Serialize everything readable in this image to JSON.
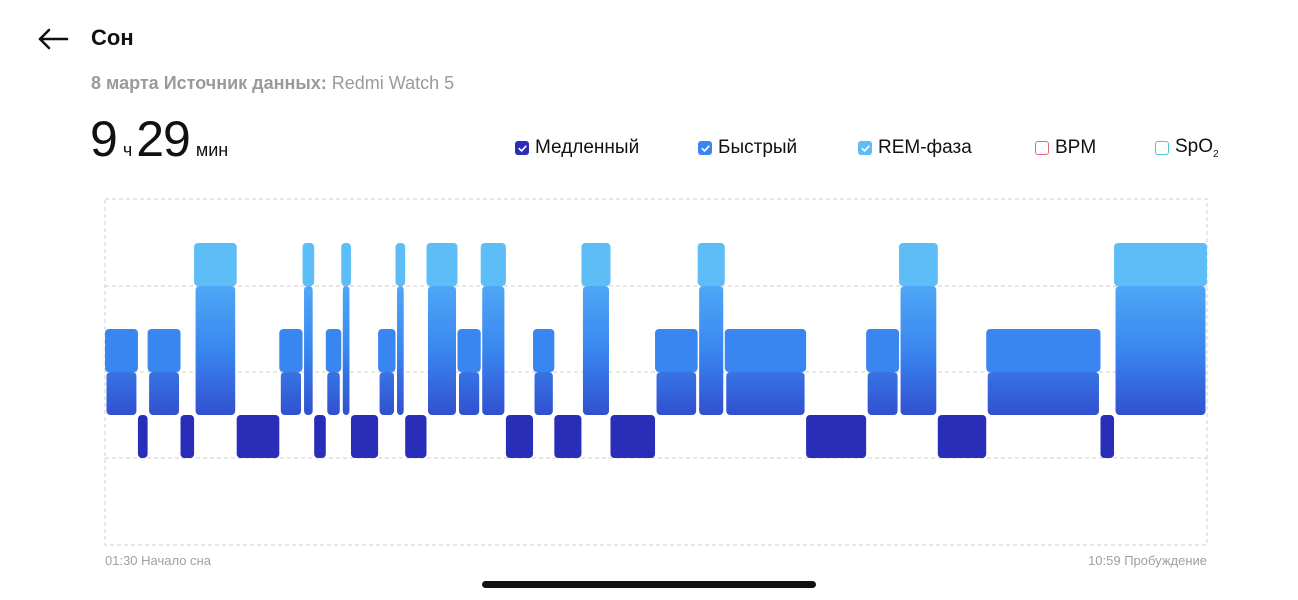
{
  "header": {
    "title": "Сон",
    "date": "8 марта",
    "source_label": "Источник данных:",
    "source_value": "Redmi Watch 5"
  },
  "duration": {
    "hours": "9",
    "hours_unit": "ч",
    "minutes": "29",
    "minutes_unit": "мин"
  },
  "legend": [
    {
      "label": "Медленный",
      "checked": true,
      "color": "#2A2DB8"
    },
    {
      "label": "Быстрый",
      "checked": true,
      "color": "#3A86F0"
    },
    {
      "label": "REM-фаза",
      "checked": true,
      "color": "#5CBDF7"
    },
    {
      "label": "BPM",
      "checked": false,
      "color": "#E8646E"
    },
    {
      "label": "SpO",
      "label_sub": "2",
      "checked": false,
      "color": "#4CC9CC"
    }
  ],
  "chart_data": {
    "type": "area",
    "x_start": "01:30",
    "x_end": "10:59",
    "x_start_label": "01:30 Начало сна",
    "x_end_label": "10:59 Пробуждение",
    "levels": [
      "REM-фаза",
      "Быстрый",
      "Медленный"
    ],
    "colors": {
      "REM-фаза": "#5CBDF7",
      "Быстрый": "#3A86F0",
      "Медленный": "#2A2DB8"
    },
    "segments": [
      {
        "start": "01:30",
        "end": "01:47",
        "stage": "Быстрый"
      },
      {
        "start": "01:47",
        "end": "01:52",
        "stage": "Медленный"
      },
      {
        "start": "01:52",
        "end": "02:09",
        "stage": "Быстрый"
      },
      {
        "start": "02:09",
        "end": "02:16",
        "stage": "Медленный"
      },
      {
        "start": "02:16",
        "end": "02:38",
        "stage": "REM-фаза"
      },
      {
        "start": "02:38",
        "end": "03:00",
        "stage": "Медленный"
      },
      {
        "start": "03:00",
        "end": "03:12",
        "stage": "Быстрый"
      },
      {
        "start": "03:12",
        "end": "03:18",
        "stage": "REM-фаза"
      },
      {
        "start": "03:18",
        "end": "03:24",
        "stage": "Медленный"
      },
      {
        "start": "03:24",
        "end": "03:32",
        "stage": "Быстрый"
      },
      {
        "start": "03:32",
        "end": "03:37",
        "stage": "REM-фаза"
      },
      {
        "start": "03:37",
        "end": "03:51",
        "stage": "Медленный"
      },
      {
        "start": "03:51",
        "end": "04:00",
        "stage": "Быстрый"
      },
      {
        "start": "04:00",
        "end": "04:05",
        "stage": "REM-фаза"
      },
      {
        "start": "04:05",
        "end": "04:16",
        "stage": "Медленный"
      },
      {
        "start": "04:16",
        "end": "04:32",
        "stage": "REM-фаза"
      },
      {
        "start": "04:32",
        "end": "04:44",
        "stage": "Быстрый"
      },
      {
        "start": "04:44",
        "end": "04:57",
        "stage": "REM-фаза"
      },
      {
        "start": "04:57",
        "end": "05:11",
        "stage": "Медленный"
      },
      {
        "start": "05:11",
        "end": "05:22",
        "stage": "Быстрый"
      },
      {
        "start": "05:22",
        "end": "05:36",
        "stage": "Медленный"
      },
      {
        "start": "05:36",
        "end": "05:51",
        "stage": "REM-фаза"
      },
      {
        "start": "05:51",
        "end": "06:14",
        "stage": "Медленный"
      },
      {
        "start": "06:14",
        "end": "06:36",
        "stage": "Быстрый"
      },
      {
        "start": "06:36",
        "end": "06:50",
        "stage": "REM-фаза"
      },
      {
        "start": "06:50",
        "end": "07:32",
        "stage": "Быстрый"
      },
      {
        "start": "07:32",
        "end": "08:03",
        "stage": "Медленный"
      },
      {
        "start": "08:03",
        "end": "08:20",
        "stage": "Быстрый"
      },
      {
        "start": "08:20",
        "end": "08:40",
        "stage": "REM-фаза"
      },
      {
        "start": "08:40",
        "end": "09:05",
        "stage": "Медленный"
      },
      {
        "start": "09:05",
        "end": "10:04",
        "stage": "Быстрый"
      },
      {
        "start": "10:04",
        "end": "10:11",
        "stage": "Медленный"
      },
      {
        "start": "10:11",
        "end": "10:59",
        "stage": "REM-фаза"
      }
    ]
  }
}
